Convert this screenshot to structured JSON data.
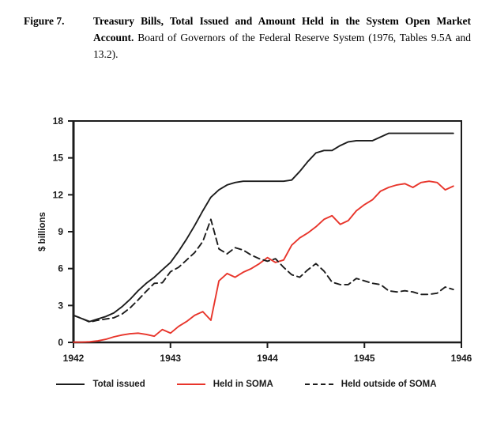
{
  "caption": {
    "label": "Figure 7.",
    "title_bold": "Treasury Bills, Total Issued and Amount Held in the System Open Market Account.",
    "source": " Board of Governors of the Federal Reserve System (1976, Tables 9.5A and 13.2)."
  },
  "chart_data": {
    "type": "line",
    "title": "",
    "xlabel": "",
    "ylabel": "$ billions",
    "xlim": [
      1942,
      1946
    ],
    "ylim": [
      0,
      18
    ],
    "x_ticks": [
      "1942",
      "1943",
      "1944",
      "1945",
      "1946"
    ],
    "y_ticks": [
      0,
      3,
      6,
      9,
      12,
      15,
      18
    ],
    "grid": false,
    "legend_position": "bottom",
    "x_frequency": "monthly",
    "x_start_year": 1942,
    "series": [
      {
        "name": "Total issued",
        "style": "solid",
        "color": "#1c1c1c",
        "values": [
          2.2,
          1.95,
          1.7,
          1.9,
          2.1,
          2.4,
          2.9,
          3.5,
          4.2,
          4.8,
          5.3,
          5.9,
          6.5,
          7.4,
          8.4,
          9.5,
          10.7,
          11.8,
          12.4,
          12.8,
          13.0,
          13.1,
          13.1,
          13.1,
          13.1,
          13.1,
          13.1,
          13.2,
          13.9,
          14.7,
          15.4,
          15.6,
          15.6,
          16.0,
          16.3,
          16.4,
          16.4,
          16.4,
          16.7,
          17.0,
          17.0,
          17.0,
          17.0,
          17.0,
          17.0,
          17.0,
          17.0,
          17.0
        ]
      },
      {
        "name": "Held in SOMA",
        "style": "solid",
        "color": "#e8352b",
        "values": [
          0.02,
          0.02,
          0.05,
          0.12,
          0.25,
          0.45,
          0.6,
          0.7,
          0.75,
          0.65,
          0.5,
          1.05,
          0.75,
          1.3,
          1.7,
          2.2,
          2.5,
          1.8,
          5.0,
          5.6,
          5.3,
          5.7,
          6.0,
          6.4,
          6.9,
          6.5,
          6.7,
          7.9,
          8.5,
          8.9,
          9.4,
          10.0,
          10.3,
          9.6,
          9.9,
          10.7,
          11.2,
          11.6,
          12.3,
          12.6,
          12.8,
          12.9,
          12.6,
          13.0,
          13.1,
          13.0,
          12.4,
          12.7
        ]
      },
      {
        "name": "Held outside of SOMA",
        "style": "dashed",
        "color": "#1c1c1c",
        "values": [
          2.2,
          1.95,
          1.65,
          1.8,
          1.9,
          2.0,
          2.3,
          2.8,
          3.45,
          4.15,
          4.8,
          4.85,
          5.75,
          6.1,
          6.7,
          7.3,
          8.2,
          10.0,
          7.6,
          7.2,
          7.7,
          7.5,
          7.1,
          6.8,
          6.6,
          6.8,
          6.1,
          5.5,
          5.3,
          5.9,
          6.4,
          5.8,
          4.9,
          4.7,
          4.7,
          5.2,
          5.0,
          4.8,
          4.7,
          4.2,
          4.1,
          4.2,
          4.1,
          3.9,
          3.9,
          4.0,
          4.5,
          4.3
        ]
      }
    ]
  },
  "legend": {
    "items": [
      {
        "label": "Total issued",
        "swatch": "solid-black"
      },
      {
        "label": "Held in SOMA",
        "swatch": "solid-red"
      },
      {
        "label": "Held outside of SOMA",
        "swatch": "dashed-black"
      }
    ]
  },
  "colors": {
    "line_black": "#1c1c1c",
    "line_red": "#e8352b",
    "text": "#1b1b1b"
  }
}
